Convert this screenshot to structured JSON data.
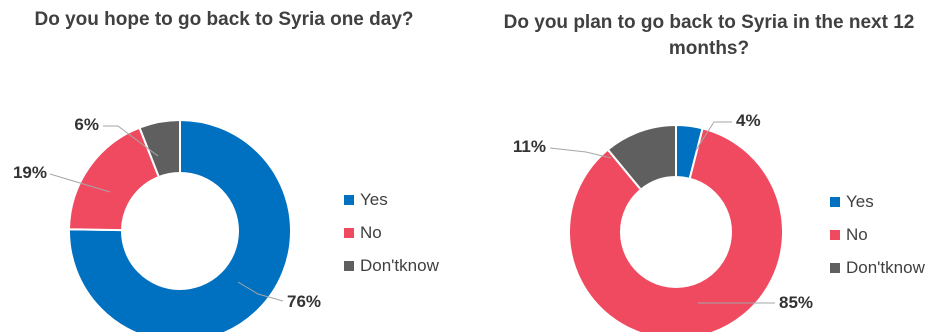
{
  "chart_data": [
    {
      "type": "pie",
      "title": "Do you hope to go back to Syria one day?",
      "categories": [
        "Yes",
        "No",
        "Don'tknow"
      ],
      "values": [
        76,
        19,
        6
      ],
      "value_labels": [
        "76%",
        "19%",
        "6%"
      ],
      "colors": [
        "#0070C0",
        "#EF4A60",
        "#5F5F5F"
      ],
      "legend_position": "right"
    },
    {
      "type": "pie",
      "title": "Do you plan to go back to Syria in the next 12 months?",
      "categories": [
        "Yes",
        "No",
        "Don'tknow"
      ],
      "values": [
        4,
        85,
        11
      ],
      "value_labels": [
        "4%",
        "85%",
        "11%"
      ],
      "colors": [
        "#0070C0",
        "#EF4A60",
        "#5F5F5F"
      ],
      "legend_position": "right"
    }
  ]
}
